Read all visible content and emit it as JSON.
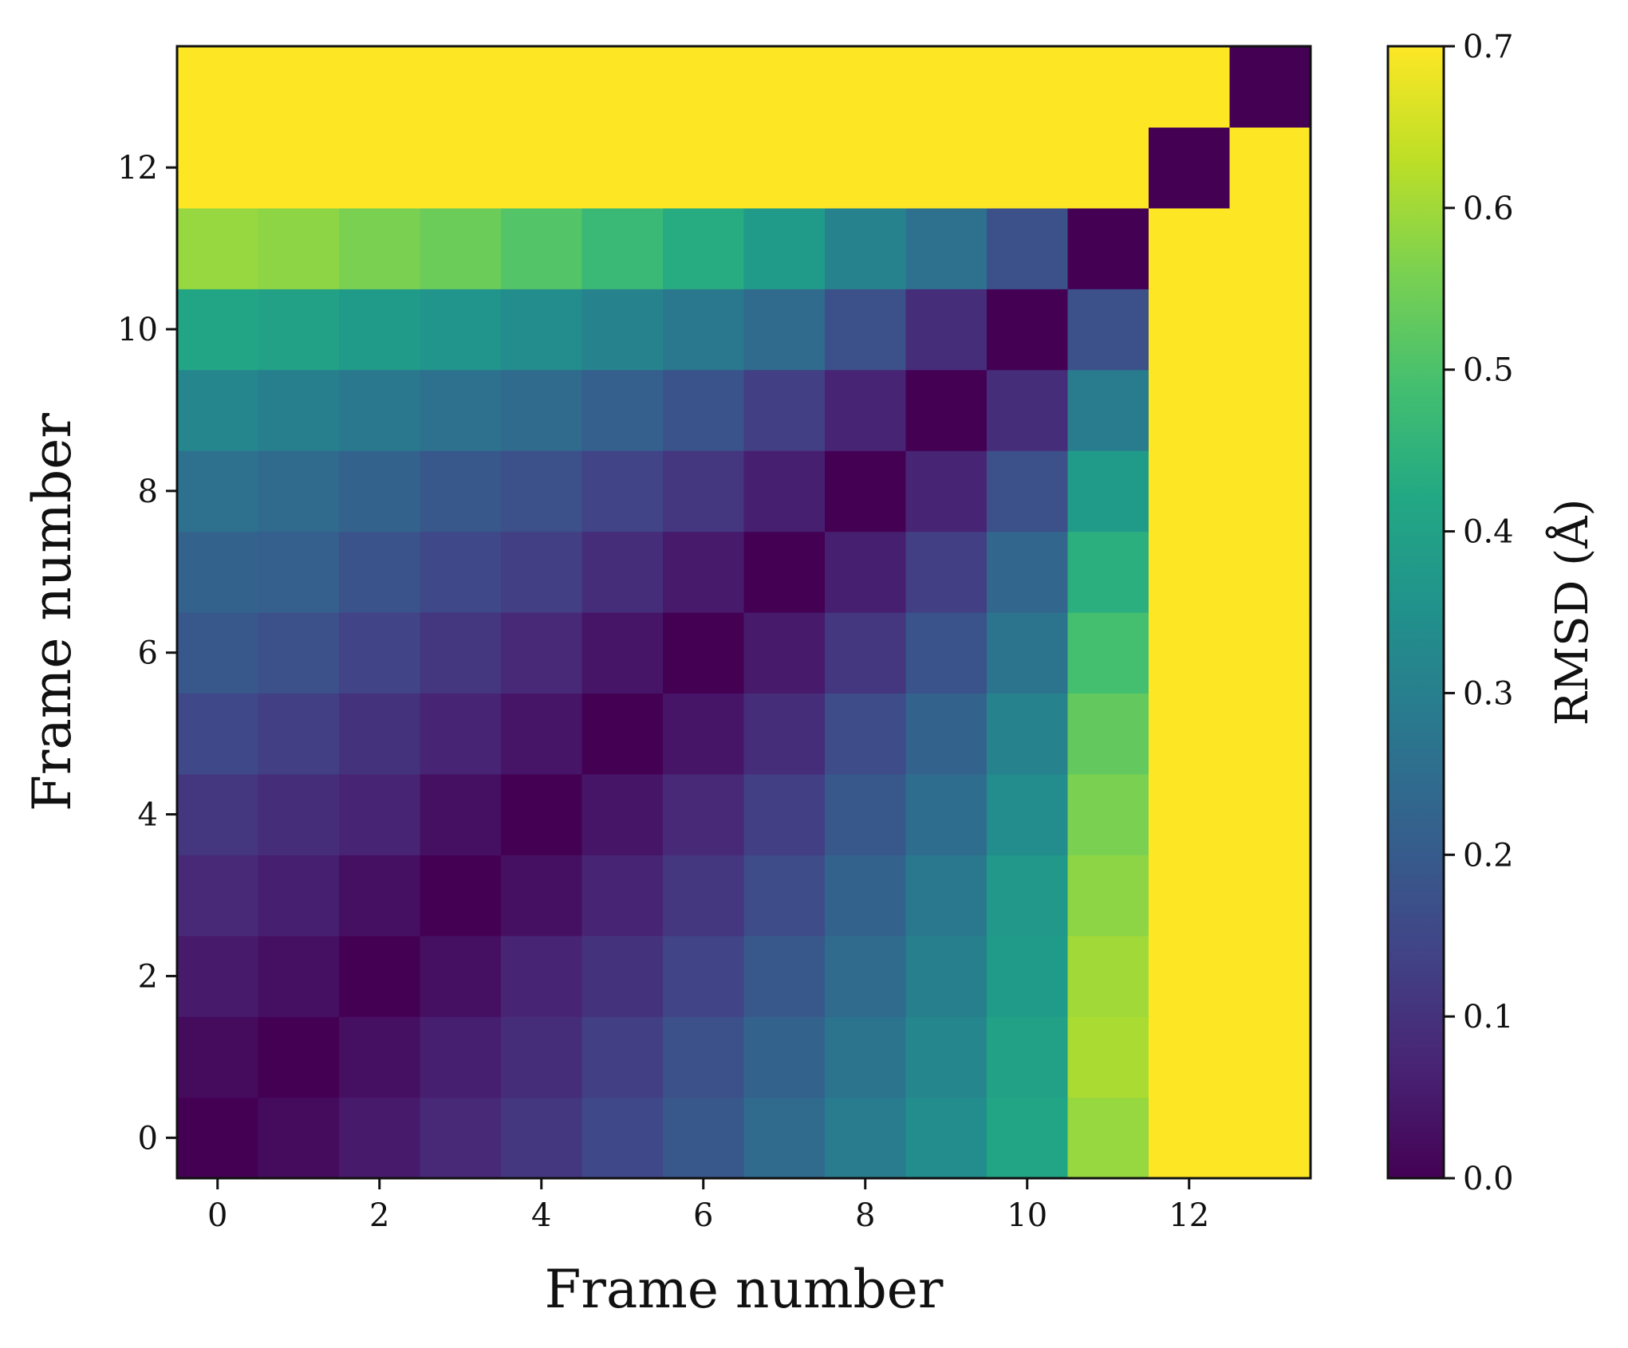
{
  "chart_data": {
    "type": "heatmap",
    "title": "",
    "xlabel": "Frame number",
    "ylabel": "Frame number",
    "colorbar_label": "RMSD (Å)",
    "colormap": "viridis",
    "clim": [
      0.0,
      0.7
    ],
    "x": [
      0,
      1,
      2,
      3,
      4,
      5,
      6,
      7,
      8,
      9,
      10,
      11,
      12,
      13
    ],
    "y": [
      0,
      1,
      2,
      3,
      4,
      5,
      6,
      7,
      8,
      9,
      10,
      11,
      12,
      13
    ],
    "xlim": [
      -0.5,
      13.5
    ],
    "ylim": [
      -0.5,
      13.5
    ],
    "x_ticks": [
      "0",
      "2",
      "4",
      "6",
      "8",
      "10",
      "12"
    ],
    "y_ticks": [
      "0",
      "2",
      "4",
      "6",
      "8",
      "10",
      "12"
    ],
    "colorbar_ticks": [
      "0.0",
      "0.1",
      "0.2",
      "0.3",
      "0.4",
      "0.5",
      "0.6",
      "0.7"
    ],
    "values": [
      [
        0.0,
        0.02,
        0.05,
        0.08,
        0.11,
        0.15,
        0.19,
        0.24,
        0.29,
        0.34,
        0.41,
        0.59,
        0.7,
        0.7
      ],
      [
        0.02,
        0.0,
        0.03,
        0.06,
        0.09,
        0.13,
        0.17,
        0.22,
        0.27,
        0.32,
        0.4,
        0.61,
        0.7,
        0.7
      ],
      [
        0.05,
        0.03,
        0.0,
        0.03,
        0.07,
        0.1,
        0.14,
        0.19,
        0.24,
        0.3,
        0.38,
        0.6,
        0.7,
        0.7
      ],
      [
        0.08,
        0.06,
        0.03,
        0.0,
        0.03,
        0.07,
        0.11,
        0.16,
        0.22,
        0.28,
        0.37,
        0.58,
        0.7,
        0.7
      ],
      [
        0.11,
        0.09,
        0.07,
        0.03,
        0.0,
        0.04,
        0.08,
        0.13,
        0.19,
        0.25,
        0.34,
        0.56,
        0.7,
        0.7
      ],
      [
        0.15,
        0.13,
        0.1,
        0.07,
        0.04,
        0.0,
        0.04,
        0.09,
        0.16,
        0.22,
        0.31,
        0.53,
        0.7,
        0.7
      ],
      [
        0.19,
        0.17,
        0.14,
        0.11,
        0.08,
        0.04,
        0.0,
        0.05,
        0.11,
        0.18,
        0.27,
        0.49,
        0.7,
        0.7
      ],
      [
        0.22,
        0.21,
        0.18,
        0.15,
        0.13,
        0.09,
        0.05,
        0.0,
        0.06,
        0.13,
        0.23,
        0.44,
        0.7,
        0.7
      ],
      [
        0.26,
        0.24,
        0.22,
        0.19,
        0.17,
        0.14,
        0.11,
        0.06,
        0.0,
        0.07,
        0.17,
        0.38,
        0.7,
        0.7
      ],
      [
        0.32,
        0.3,
        0.28,
        0.26,
        0.24,
        0.21,
        0.18,
        0.13,
        0.07,
        0.0,
        0.09,
        0.29,
        0.7,
        0.7
      ],
      [
        0.41,
        0.4,
        0.38,
        0.36,
        0.34,
        0.31,
        0.28,
        0.24,
        0.17,
        0.09,
        0.0,
        0.17,
        0.7,
        0.7
      ],
      [
        0.59,
        0.58,
        0.56,
        0.54,
        0.51,
        0.47,
        0.43,
        0.38,
        0.31,
        0.26,
        0.17,
        0.0,
        0.7,
        0.7
      ],
      [
        0.7,
        0.7,
        0.7,
        0.7,
        0.7,
        0.7,
        0.7,
        0.7,
        0.7,
        0.7,
        0.7,
        0.7,
        0.0,
        0.7
      ],
      [
        0.7,
        0.7,
        0.7,
        0.7,
        0.7,
        0.7,
        0.7,
        0.7,
        0.7,
        0.7,
        0.7,
        0.7,
        0.7,
        0.0
      ]
    ],
    "grid": false,
    "legend": "colorbar-right"
  }
}
